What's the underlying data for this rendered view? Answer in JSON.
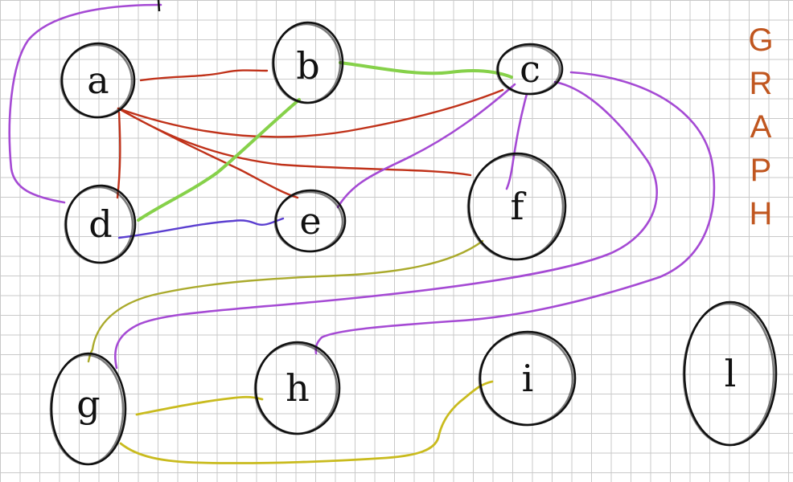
{
  "title": {
    "letters": [
      "G",
      "R",
      "A",
      "P",
      "H"
    ],
    "color": "#c0561f"
  },
  "colors": {
    "red": "#c0321a",
    "green": "#86d14a",
    "purple": "#a54ad4",
    "blue": "#5b3fd0",
    "olive": "#aaaa2c",
    "yellow": "#c9bb1e",
    "grid": "#c9c9c9",
    "ink": "#111111"
  },
  "nodes": [
    {
      "id": "a",
      "label": "a"
    },
    {
      "id": "b",
      "label": "b"
    },
    {
      "id": "c",
      "label": "c"
    },
    {
      "id": "d",
      "label": "d"
    },
    {
      "id": "e",
      "label": "e"
    },
    {
      "id": "f",
      "label": "f"
    },
    {
      "id": "g",
      "label": "g"
    },
    {
      "id": "h",
      "label": "h"
    },
    {
      "id": "i",
      "label": "i"
    },
    {
      "id": "l",
      "label": "l"
    }
  ],
  "edges": [
    {
      "from": "a",
      "to": "b",
      "color": "red"
    },
    {
      "from": "a",
      "to": "c",
      "color": "red"
    },
    {
      "from": "a",
      "to": "d",
      "color": "red"
    },
    {
      "from": "a",
      "to": "e",
      "color": "red"
    },
    {
      "from": "a",
      "to": "f",
      "color": "red"
    },
    {
      "from": "b",
      "to": "c",
      "color": "green"
    },
    {
      "from": "b",
      "to": "d",
      "color": "green"
    },
    {
      "from": "c",
      "to": "d",
      "color": "purple"
    },
    {
      "from": "c",
      "to": "e",
      "color": "purple"
    },
    {
      "from": "c",
      "to": "f",
      "color": "purple"
    },
    {
      "from": "c",
      "to": "g",
      "color": "purple"
    },
    {
      "from": "c",
      "to": "h",
      "color": "purple"
    },
    {
      "from": "d",
      "to": "e",
      "color": "blue"
    },
    {
      "from": "f",
      "to": "g",
      "color": "olive"
    },
    {
      "from": "g",
      "to": "h",
      "color": "yellow"
    },
    {
      "from": "g",
      "to": "i",
      "color": "yellow"
    }
  ]
}
